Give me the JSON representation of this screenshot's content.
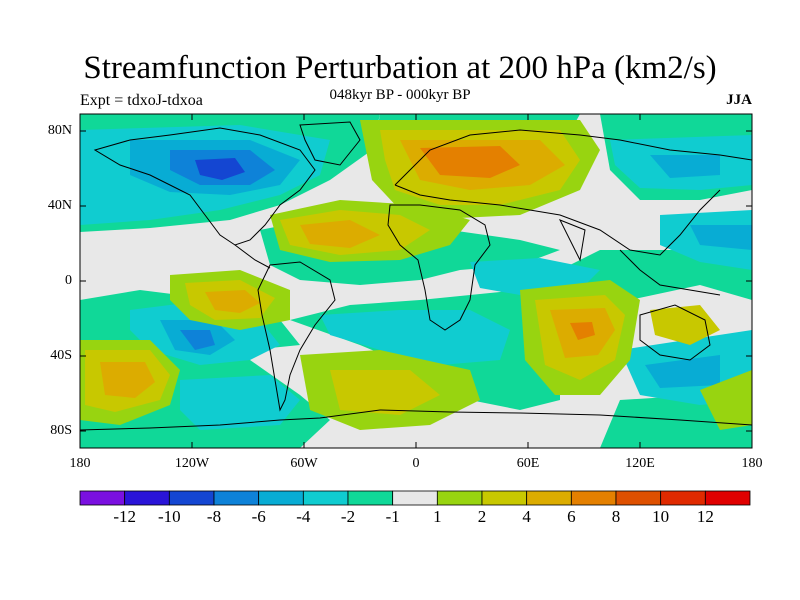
{
  "title": "Streamfunction Perturbation at 200 hPa (km2/s)",
  "subtitle": "048kyr BP - 000kyr BP",
  "experiment": "Expt = tdxoJ-tdxoa",
  "season": "JJA",
  "lat_ticks": [
    "80N",
    "40N",
    "0",
    "40S",
    "80S"
  ],
  "lon_ticks": [
    "180",
    "120W",
    "60W",
    "0",
    "60E",
    "120E",
    "180"
  ],
  "colorbar": {
    "labels": [
      "-12",
      "-10",
      "-8",
      "-6",
      "-4",
      "-2",
      "-1",
      "1",
      "2",
      "4",
      "6",
      "8",
      "10",
      "12"
    ],
    "colors": [
      "#7a10e0",
      "#2a14d8",
      "#1446d2",
      "#0e82d8",
      "#08acd4",
      "#10ccd0",
      "#10d898",
      "#e8e8e8",
      "#98d410",
      "#c8c800",
      "#dcac00",
      "#e48000",
      "#de5000",
      "#e02a00",
      "#e00000"
    ]
  }
}
